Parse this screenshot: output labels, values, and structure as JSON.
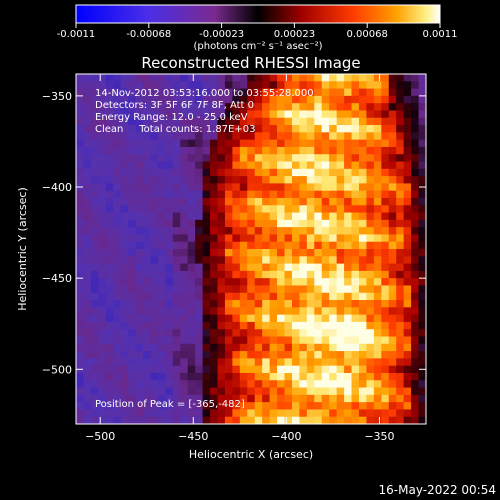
{
  "colorbar": {
    "ticks": [
      "-0.0011",
      "-0.00068",
      "-0.00023",
      "0.00023",
      "0.00068",
      "0.0011"
    ],
    "unit_label": "(photons cm⁻² s⁻¹ asec⁻²)",
    "range": [
      -0.0011,
      0.0011
    ]
  },
  "plot": {
    "title": "Reconstructed RHESSI Image",
    "info_lines": [
      "14-Nov-2012 03:53:16.000 to 03:55:28.000",
      "Detectors: 3F 5F 6F 7F 8F, Att 0",
      "Energy Range: 12.0 - 25.0 keV",
      "Clean     Total counts: 1.87E+03"
    ],
    "peak_label": "Position of Peak = [-365,-482]"
  },
  "footer": {
    "timestamp": "16-May-2022 00:54"
  },
  "chart_data": {
    "type": "heatmap",
    "title": "Reconstructed RHESSI Image",
    "xlabel": "Heliocentric X (arcsec)",
    "ylabel": "Heliocentric Y (arcsec)",
    "xlim": [
      -513,
      -325
    ],
    "ylim": [
      -530,
      -338
    ],
    "x_ticks": [
      -500,
      -450,
      -400,
      -350
    ],
    "y_ticks": [
      -350,
      -400,
      -450,
      -500
    ],
    "x_tick_labels": [
      "−500",
      "−450",
      "−400",
      "−350"
    ],
    "y_tick_labels": [
      "−350",
      "−400",
      "−450",
      "−500"
    ],
    "colormap": [
      "#0000ff",
      "#5a3ccc",
      "#7a3090",
      "#000000",
      "#8a0000",
      "#ff3000",
      "#ff9000",
      "#ffe060",
      "#ffffff"
    ],
    "peak": [
      -365,
      -482
    ],
    "emission_profile": {
      "y": [
        -340,
        -360,
        -380,
        -400,
        -420,
        -440,
        -460,
        -480,
        -500,
        -520,
        -530
      ],
      "left_edge_x": [
        -405,
        -420,
        -428,
        -432,
        -433,
        -433,
        -432,
        -430,
        -430,
        -430,
        -432
      ],
      "right_edge_x": [
        -345,
        -342,
        -338,
        -335,
        -334,
        -333,
        -333,
        -334,
        -335,
        -335,
        -336
      ]
    }
  }
}
